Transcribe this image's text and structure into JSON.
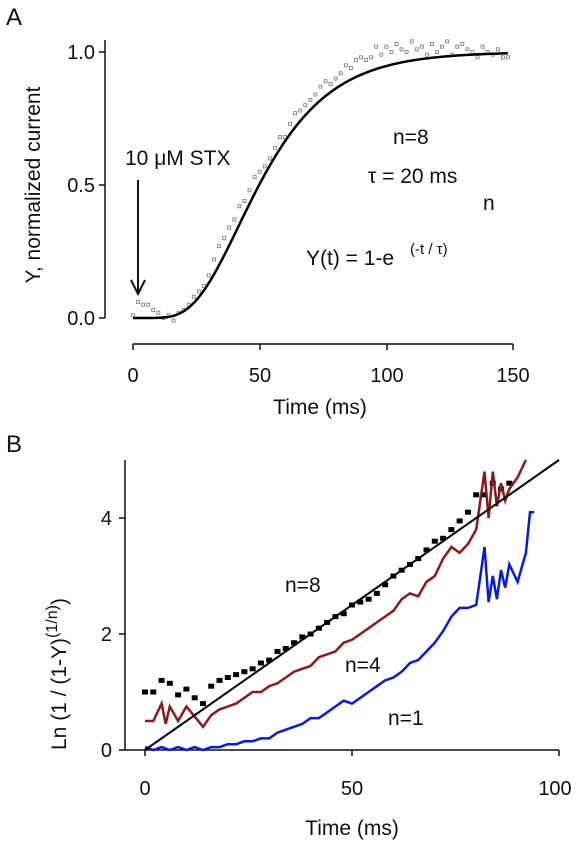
{
  "chart_data": [
    {
      "panel_label": "A",
      "type": "scatter",
      "xlabel": "Time (ms)",
      "ylabel": "Y, normalized current",
      "xlim": [
        0,
        150
      ],
      "ylim": [
        0,
        1.0
      ],
      "xticks": [
        "0",
        "50",
        "100",
        "150"
      ],
      "yticks": [
        "0.0",
        "0.5",
        "1.0"
      ],
      "annotations": {
        "drug": "10 μM STX",
        "n_value": "n=8",
        "tau_value": "τ = 20 ms",
        "formula_base": "Y(t) = 1-e",
        "formula_exp": "(-t / τ)",
        "formula_power": "n"
      },
      "series": [
        {
          "kind": "scatter",
          "color": "#777777",
          "x": [
            0,
            2,
            4,
            6,
            8,
            10,
            12,
            14,
            16,
            18,
            20,
            22,
            24,
            26,
            28,
            30,
            32,
            34,
            36,
            38,
            40,
            42,
            44,
            46,
            48,
            50,
            52,
            54,
            56,
            58,
            60,
            62,
            64,
            66,
            68,
            70,
            72,
            74,
            76,
            78,
            80,
            82,
            84,
            86,
            88,
            90,
            92,
            94,
            96,
            98,
            100,
            102,
            104,
            106,
            108,
            110,
            112,
            114,
            116,
            118,
            120,
            122,
            124,
            126,
            128,
            130,
            132,
            134,
            136,
            138,
            140,
            142,
            144,
            146,
            148
          ],
          "y": [
            0.01,
            0.06,
            0.05,
            0.05,
            0.03,
            0.02,
            0.0,
            0.01,
            -0.01,
            0.02,
            0.03,
            0.05,
            0.08,
            0.1,
            0.12,
            0.16,
            0.22,
            0.27,
            0.3,
            0.34,
            0.37,
            0.42,
            0.44,
            0.48,
            0.53,
            0.55,
            0.57,
            0.6,
            0.64,
            0.68,
            0.68,
            0.73,
            0.77,
            0.78,
            0.8,
            0.82,
            0.84,
            0.87,
            0.89,
            0.88,
            0.9,
            0.92,
            0.95,
            0.94,
            0.97,
            0.98,
            0.97,
            0.98,
            1.02,
            0.99,
            1.02,
            1.0,
            1.03,
            1.01,
            1.0,
            1.04,
            1.01,
            1.02,
            0.99,
            1.03,
            1.0,
            1.02,
            1.04,
            0.99,
            1.02,
            1.03,
            1.01,
            1.0,
            0.98,
            1.02,
            1.0,
            0.99,
            1.01,
            0.98,
            0.98
          ]
        },
        {
          "kind": "fit",
          "color": "#000000",
          "n": 8,
          "tau": 20
        }
      ]
    },
    {
      "panel_label": "B",
      "type": "line",
      "xlabel": "Time (ms)",
      "ylabel_main": "Ln (1 / (1-Y)",
      "ylabel_sup": "(1/n)",
      "ylabel_end": ")",
      "xlim": [
        0,
        100
      ],
      "ylim": [
        0,
        5
      ],
      "xticks": [
        "0",
        "50",
        "100"
      ],
      "yticks": [
        "0",
        "2",
        "4"
      ],
      "series": [
        {
          "name": "n=8",
          "kind": "scatter",
          "color": "#000000",
          "x": [
            0,
            2,
            4,
            6,
            8,
            10,
            12,
            14,
            16,
            18,
            20,
            22,
            24,
            26,
            28,
            30,
            32,
            34,
            36,
            38,
            40,
            42,
            44,
            46,
            48,
            50,
            52,
            54,
            56,
            58,
            60,
            62,
            64,
            66,
            68,
            70,
            72,
            74,
            76,
            78,
            80,
            82,
            84,
            86,
            88
          ],
          "y": [
            1.0,
            1.0,
            1.2,
            1.15,
            0.95,
            1.05,
            0.9,
            0.8,
            1.1,
            1.2,
            1.25,
            1.3,
            1.35,
            1.4,
            1.5,
            1.55,
            1.7,
            1.75,
            1.85,
            1.95,
            2.0,
            2.1,
            2.2,
            2.3,
            2.35,
            2.5,
            2.55,
            2.6,
            2.7,
            2.85,
            3.0,
            3.1,
            3.2,
            3.3,
            3.45,
            3.6,
            3.65,
            3.8,
            3.95,
            4.1,
            4.4,
            4.4,
            4.6,
            4.5,
            4.6
          ]
        },
        {
          "name": "n=4",
          "kind": "line",
          "color": "#8b1a1a",
          "x": [
            0,
            2,
            4,
            5,
            6,
            8,
            10,
            14,
            16,
            18,
            20,
            22,
            24,
            26,
            28,
            30,
            32,
            34,
            36,
            38,
            40,
            42,
            44,
            46,
            48,
            50,
            52,
            54,
            56,
            58,
            60,
            62,
            64,
            66,
            68,
            70,
            72,
            74,
            76,
            78,
            80,
            82,
            83,
            84,
            85,
            86,
            87,
            88,
            90,
            92
          ],
          "y": [
            0.5,
            0.5,
            0.8,
            0.45,
            0.75,
            0.5,
            0.75,
            0.4,
            0.6,
            0.7,
            0.75,
            0.8,
            0.9,
            1.0,
            1.0,
            1.1,
            1.15,
            1.25,
            1.35,
            1.4,
            1.45,
            1.6,
            1.65,
            1.7,
            1.85,
            1.9,
            2.0,
            2.1,
            2.2,
            2.3,
            2.4,
            2.6,
            2.7,
            2.65,
            2.9,
            3.0,
            3.3,
            3.5,
            3.4,
            3.55,
            3.8,
            4.8,
            4.0,
            4.8,
            4.2,
            4.6,
            4.3,
            4.5,
            4.7,
            5.0
          ]
        },
        {
          "name": "n=1",
          "kind": "line",
          "color": "#0a19e0",
          "x": [
            0,
            2,
            4,
            6,
            8,
            10,
            12,
            14,
            16,
            18,
            20,
            22,
            24,
            26,
            28,
            30,
            32,
            34,
            36,
            38,
            40,
            42,
            44,
            46,
            48,
            50,
            52,
            54,
            56,
            58,
            60,
            62,
            64,
            66,
            68,
            70,
            72,
            74,
            76,
            78,
            80,
            82,
            83,
            84,
            85,
            86,
            87,
            88,
            90,
            92,
            93,
            94
          ],
          "y": [
            0.05,
            0.0,
            0.05,
            0.0,
            0.05,
            0.0,
            0.05,
            0.0,
            0.05,
            0.05,
            0.1,
            0.1,
            0.15,
            0.15,
            0.2,
            0.2,
            0.3,
            0.35,
            0.4,
            0.45,
            0.55,
            0.55,
            0.65,
            0.75,
            0.85,
            0.8,
            0.9,
            1.0,
            1.1,
            1.2,
            1.25,
            1.35,
            1.5,
            1.55,
            1.7,
            1.85,
            2.05,
            2.3,
            2.45,
            2.45,
            2.5,
            3.5,
            2.55,
            3.0,
            2.6,
            3.1,
            2.8,
            3.2,
            2.9,
            3.4,
            4.1,
            4.1
          ]
        },
        {
          "name": "",
          "kind": "fit-line",
          "color": "#000000",
          "x": [
            0,
            100
          ],
          "y": [
            0,
            5
          ]
        }
      ],
      "labels": {
        "n8": "n=8",
        "n4": "n=4",
        "n1": "n=1"
      }
    }
  ]
}
